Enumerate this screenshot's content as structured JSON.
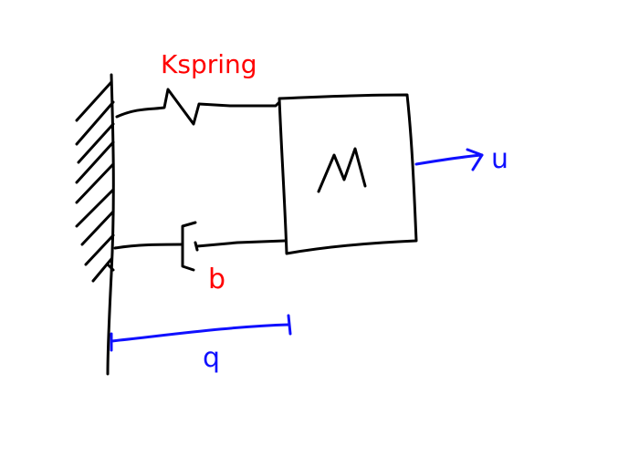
{
  "labels": {
    "spring": "Kspring",
    "mass": "M",
    "damper": "b",
    "input": "u",
    "position": "q"
  },
  "colors": {
    "ink": "#000000",
    "red": "#ff0000",
    "blue": "#1010ff",
    "background": "#ffffff"
  }
}
